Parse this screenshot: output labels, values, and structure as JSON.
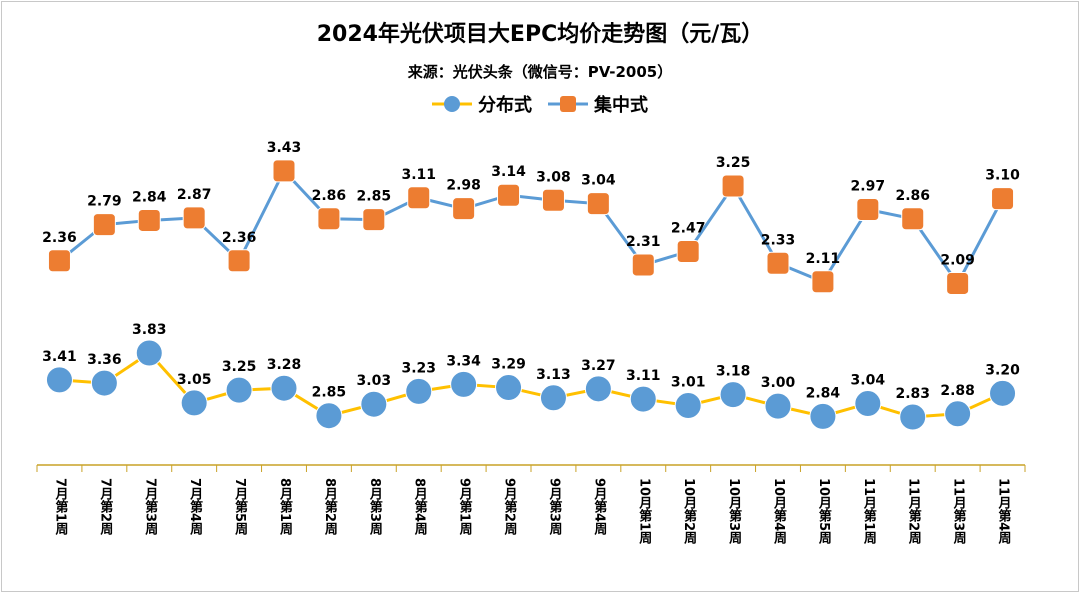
{
  "title": "2024年光伏项目大EPC均价走势图（元/瓦）",
  "subtitle": "来源：光伏头条（微信号：PV-2005）",
  "colors": {
    "distributed_marker": "#5b9bd5",
    "distributed_line": "#ffc000",
    "centralized_marker": "#ed7d31",
    "centralized_line": "#5b9bd5",
    "axis": "#c9a227"
  },
  "chart_data": {
    "type": "line",
    "title": "2024年光伏项目大EPC均价走势图（元/瓦）",
    "subtitle": "来源：光伏头条（微信号：PV-2005）",
    "legend_position": "top",
    "grid": false,
    "categories": [
      "7月第1周",
      "7月第2周",
      "7月第3周",
      "7月第4周",
      "7月第5周",
      "8月第1周",
      "8月第2周",
      "8月第3周",
      "8月第4周",
      "9月第1周",
      "9月第2周",
      "9月第3周",
      "9月第4周",
      "10月第1周",
      "10月第2周",
      "10月第3周",
      "10月第4周",
      "10月第5周",
      "11月第1周",
      "11月第2周",
      "11月第3周",
      "11月第4周"
    ],
    "series": [
      {
        "name": "分布式",
        "marker": "circle",
        "values": [
          3.41,
          3.36,
          3.83,
          3.05,
          3.25,
          3.28,
          2.85,
          3.03,
          3.23,
          3.34,
          3.29,
          3.13,
          3.27,
          3.11,
          3.01,
          3.18,
          3.0,
          2.84,
          3.04,
          2.83,
          2.88,
          3.2
        ]
      },
      {
        "name": "集中式",
        "marker": "square",
        "values": [
          2.36,
          2.79,
          2.84,
          2.87,
          2.36,
          3.43,
          2.86,
          2.85,
          3.11,
          2.98,
          3.14,
          3.08,
          3.04,
          2.31,
          2.47,
          3.25,
          2.33,
          2.11,
          2.97,
          2.86,
          2.09,
          3.1
        ]
      }
    ]
  }
}
